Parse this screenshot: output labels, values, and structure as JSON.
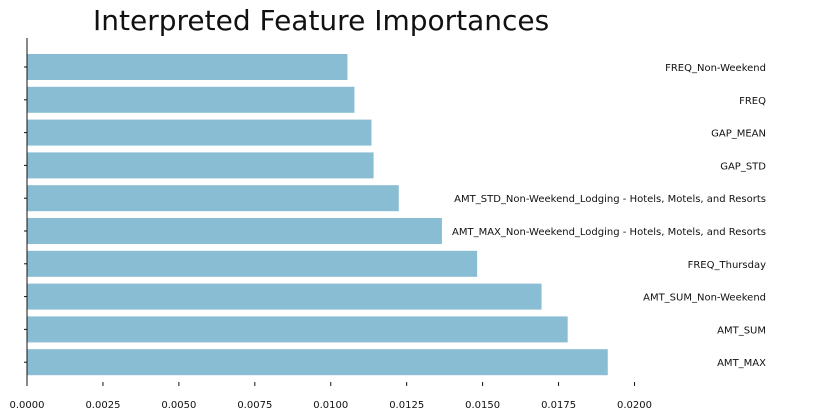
{
  "chart_data": {
    "type": "bar",
    "orientation": "horizontal",
    "title": "Interpreted Feature Importances",
    "xlabel": "",
    "ylabel": "",
    "xlim": [
      0,
      0.0215
    ],
    "xticks": [
      "0.0000",
      "0.0025",
      "0.0050",
      "0.0075",
      "0.0100",
      "0.0125",
      "0.0150",
      "0.0175",
      "0.0200"
    ],
    "xtick_values": [
      0,
      0.0025,
      0.005,
      0.0075,
      0.01,
      0.0125,
      0.015,
      0.0175,
      0.02
    ],
    "categories": [
      "FREQ_Non-Weekend",
      "FREQ",
      "GAP_MEAN",
      "GAP_STD",
      "AMT_STD_Non-Weekend_Lodging - Hotels, Motels, and Resorts",
      "AMT_MAX_Non-Weekend_Lodging - Hotels, Motels, and Resorts",
      "FREQ_Thursday",
      "AMT_SUM_Non-Weekend",
      "AMT_SUM",
      "AMT_MAX"
    ],
    "values": [
      0.01055,
      0.01078,
      0.01134,
      0.01141,
      0.01224,
      0.01366,
      0.01482,
      0.01694,
      0.0178,
      0.01912
    ],
    "bar_color": "#89bdd3",
    "grid": false,
    "legend": "none"
  }
}
